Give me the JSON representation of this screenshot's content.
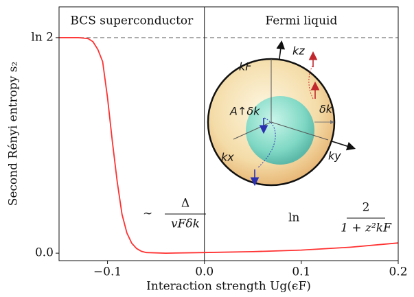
{
  "chart_data": {
    "type": "line",
    "xlabel": "Interaction strength Ug(ϵF)",
    "ylabel": "Second Rényi entropy s₂",
    "x": [
      -0.15,
      -0.13,
      -0.12,
      -0.115,
      -0.11,
      -0.105,
      -0.1,
      -0.095,
      -0.09,
      -0.085,
      -0.08,
      -0.075,
      -0.07,
      -0.065,
      -0.06,
      -0.04,
      0,
      0.05,
      0.1,
      0.15,
      0.2
    ],
    "series": [
      {
        "color": "#ff3030",
        "values": [
          0.693,
          0.693,
          0.69,
          0.68,
          0.655,
          0.616,
          0.5,
          0.36,
          0.23,
          0.125,
          0.065,
          0.032,
          0.015,
          0.006,
          0.002,
          0.0,
          0.002,
          0.005,
          0.01,
          0.019,
          0.033
        ]
      }
    ],
    "xlim": [
      -0.15,
      0.2
    ],
    "ylim": [
      -0.024,
      0.792
    ],
    "xticks": [
      {
        "value": -0.1,
        "label": "−0.1"
      },
      {
        "value": 0,
        "label": "0.0"
      },
      0.1,
      0.2
    ],
    "yticks": [
      {
        "value": 0,
        "label": "0.0"
      },
      {
        "value": 0.693,
        "label": "ln 2"
      }
    ],
    "hline": 0.693,
    "vline": 0,
    "region_labels": [
      "BCS superconductor",
      "Fermi liquid"
    ],
    "annotations": [
      {
        "prefix": "∼",
        "numerator": "Δ",
        "denominator": "vFδk"
      },
      {
        "prefix": "ln",
        "numerator": "2",
        "denominator": "1 + z²kF"
      }
    ],
    "illustration_labels": [
      "kz",
      "kF",
      "A↑δk",
      "δk",
      "kx",
      "ky"
    ]
  }
}
